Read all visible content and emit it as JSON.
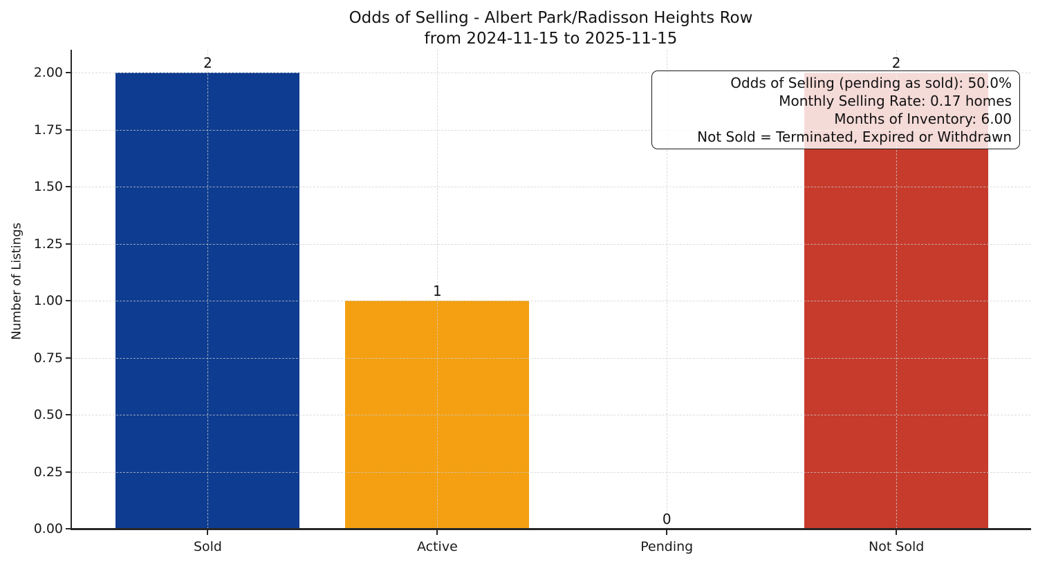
{
  "chart_data": {
    "type": "bar",
    "title": "Odds of Selling - Albert Park/Radisson Heights Row",
    "subtitle": "from 2024-11-15 to 2025-11-15",
    "ylabel": "Number of Listings",
    "xlabel": "",
    "categories": [
      "Sold",
      "Active",
      "Pending",
      "Not Sold"
    ],
    "values": [
      2,
      1,
      0,
      2
    ],
    "bar_value_labels": [
      "2",
      "1",
      "0",
      "2"
    ],
    "bar_colors": [
      "#0e3c90",
      "#f4a012",
      null,
      "#c63b2b"
    ],
    "ylim": [
      0,
      2.1
    ],
    "yticks": [
      0,
      0.25,
      0.5,
      0.75,
      1.0,
      1.25,
      1.5,
      1.75,
      2.0
    ],
    "ytick_labels": [
      "0.00",
      "0.25",
      "0.50",
      "0.75",
      "1.00",
      "1.25",
      "1.50",
      "1.75",
      "2.00"
    ],
    "grid": true,
    "grid_style": "dashed",
    "annotation": {
      "position": "top-right",
      "lines": [
        "Odds of Selling (pending as sold): 50.0%",
        "Monthly Selling Rate: 0.17 homes",
        "Months of Inventory: 6.00",
        "Not Sold = Terminated, Expired or Withdrawn"
      ]
    },
    "colors": {
      "sold": "#0e3c90",
      "active": "#f4a012",
      "not_sold": "#c63b2b",
      "text": "#1a1a1a",
      "grid": "#d9d9d9",
      "spine": "#262626",
      "annotation_bg": "#ffffff"
    }
  }
}
